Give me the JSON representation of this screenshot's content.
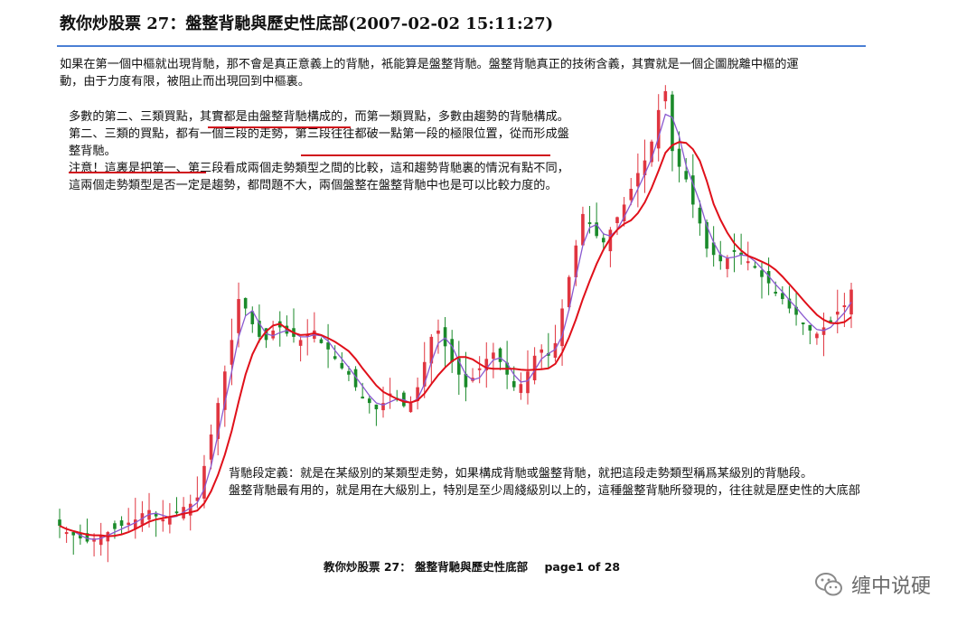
{
  "document": {
    "title": "教你炒股票 27：盤整背馳與歷史性底部(2007-02-02 15:11:27)",
    "paragraph1": "如果在第一個中樞就出現背馳，那不會是真正意義上的背馳，衹能算是盤整背馳。盤整背馳真正的技術含義，其實就是一個企圖脫離中樞的運動，由于力度有限，被阻止而出現回到中樞裏。",
    "paragraph2_lines": [
      "多數的第二、三類買點，其實都是由盤整背馳構成的，而第一類買點，多數由趨勢的背馳構成。",
      "第二、三類的買點，都有一個三段的走勢，第三段往往都破一點第一段的極限位置，從而形成盤整背馳。",
      "注意！這裏是把第一、第三段看成兩個走勢類型之間的比較，這和趨勢背馳裏的情況有點不同，這兩個走勢類型是否一定是趨勢，都問題不大，兩個盤整在盤整背馳中也是可以比較力度的。"
    ],
    "paragraph3_lines": [
      "背馳段定義：就是在某級別的某類型走勢，如果構成背馳或盤整背馳，就把這段走勢類型稱爲某級別的背馳段。",
      "盤整背馳最有用的，就是用在大級別上，特別是至少周綫級別以上的，這種盤整背馳所發現的，往往就是歷史性的大底部"
    ],
    "footer_title": "教你炒股票 27：  盤整背馳與歷史性底部",
    "footer_page": "page1 of 28"
  },
  "watermark": {
    "text": "缠中说硬",
    "icon": "wechat-icon"
  },
  "chart_colors": {
    "up": "#e03540",
    "down": "#1a8a2a",
    "ma_fast": "#8a5ad0",
    "ma_slow": "#e0101a",
    "underline": "#d0101a",
    "rule": "#4a7fd4"
  },
  "chart_data": {
    "type": "candlestick",
    "title": "",
    "xlabel": "",
    "ylabel": "",
    "series": [
      {
        "type": "close",
        "values": [
          1.6,
          1.4,
          1.3,
          1.2,
          1.1,
          1.2,
          1.3,
          1.4,
          1.5,
          1.6,
          1.7,
          1.8,
          2.0,
          2.1,
          1.9,
          1.8,
          1.9,
          2.0,
          2.2,
          2.3,
          2.5,
          3.5,
          4.5,
          5.5,
          6.5,
          7.5,
          8.8,
          8.5,
          8.0,
          7.6,
          7.5,
          7.8,
          7.9,
          7.7,
          7.6,
          7.5,
          7.7,
          7.8,
          7.4,
          7.2,
          6.9,
          6.6,
          6.4,
          6.0,
          5.7,
          5.5,
          5.3,
          5.5,
          5.8,
          5.6,
          5.4,
          5.5,
          6.0,
          6.8,
          7.6,
          7.8,
          7.3,
          6.8,
          6.4,
          6.0,
          6.3,
          6.6,
          6.9,
          7.1,
          6.8,
          6.4,
          6.0,
          6.1,
          6.5,
          7.0,
          7.2,
          7.0,
          7.4,
          8.5,
          9.5,
          10.5,
          11.5,
          11.2,
          10.8,
          10.6,
          11.0,
          11.4,
          11.8,
          12.3,
          12.8,
          13.2,
          13.8,
          14.8,
          15.4,
          13.5,
          13.0,
          12.6,
          11.8,
          11.2,
          10.4,
          10.2,
          10.0,
          10.1,
          10.3,
          10.2,
          10.0,
          9.8,
          9.5,
          9.3,
          9.0,
          8.8,
          8.5,
          8.3,
          8.0,
          7.8,
          7.7,
          7.9,
          8.1,
          8.4,
          8.6,
          9.1
        ]
      },
      {
        "name": "",
        "type": "ma_fast"
      },
      {
        "name": "",
        "type": "ma_slow"
      }
    ]
  }
}
